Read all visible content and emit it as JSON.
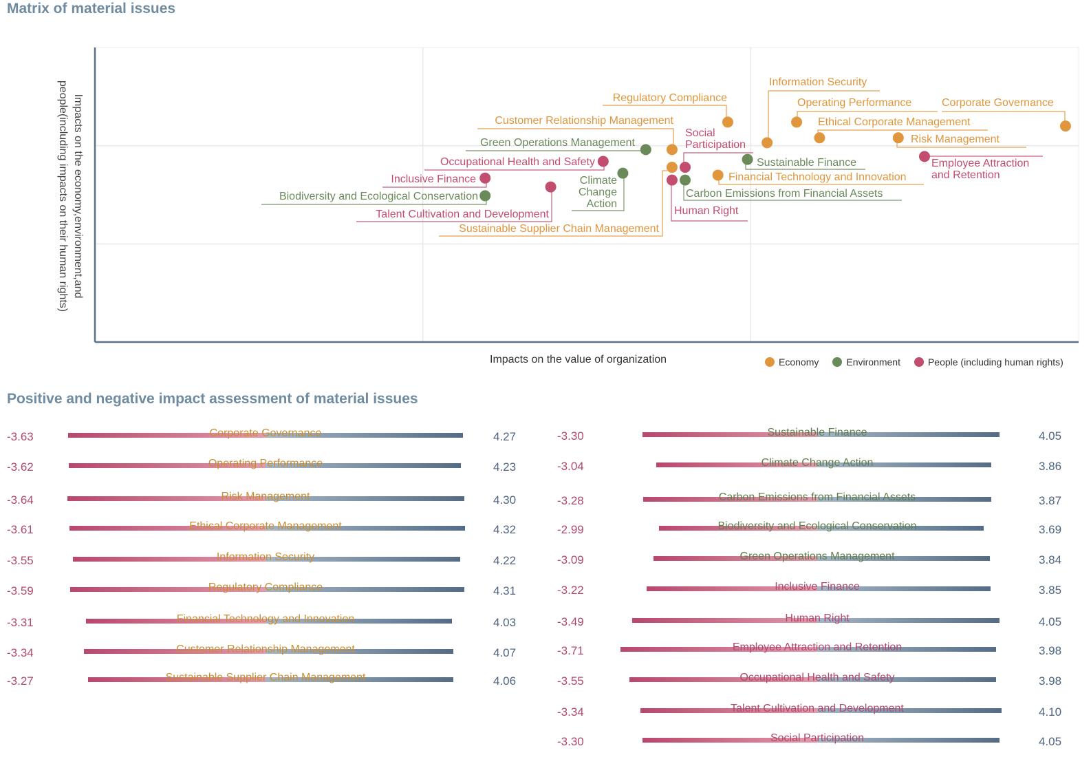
{
  "matrix": {
    "title": "Matrix of material issues",
    "xlabel": "Impacts on the value of organization",
    "ylabel": "Impacts on the economy,environment,and people(including impacts on their human rights)",
    "legend": [
      {
        "key": "economy",
        "label": "Economy",
        "color": "#e0963c"
      },
      {
        "key": "environment",
        "label": "Environment",
        "color": "#6a8a5a"
      },
      {
        "key": "people",
        "label": "People (including human rights)",
        "color": "#c24d6e"
      }
    ]
  },
  "bars_section": {
    "title": "Positive and negative impact assessment of material issues",
    "colors": {
      "negative": "#b8486c",
      "positive": "#556c86",
      "economy_label": "#c98d33",
      "environment_label": "#5f7f4d",
      "people_label": "#b0496e"
    }
  },
  "chart_data": [
    {
      "type": "scatter",
      "title": "Matrix of material issues",
      "xlabel": "Impacts on the value of organization",
      "ylabel": "Impacts on the economy,environment,and people(including impacts on their human rights)",
      "xlim": [
        0,
        3
      ],
      "ylim": [
        0,
        3
      ],
      "grid": true,
      "legend_position": "bottom-right",
      "series": [
        {
          "name": "Economy",
          "color": "#e0963c",
          "points": [
            {
              "label": "Regulatory Compliance",
              "x": 1.93,
              "y": 2.24
            },
            {
              "label": "Information Security",
              "x": 2.05,
              "y": 2.03
            },
            {
              "label": "Operating Performance",
              "x": 2.14,
              "y": 2.24
            },
            {
              "label": "Corporate Governance",
              "x": 2.96,
              "y": 2.2
            },
            {
              "label": "Ethical Corporate Management",
              "x": 2.21,
              "y": 2.08
            },
            {
              "label": "Risk Management",
              "x": 2.45,
              "y": 2.08
            },
            {
              "label": "Financial Technology and Innovation",
              "x": 1.9,
              "y": 1.7
            },
            {
              "label": "Customer Relationship Management",
              "x": 1.76,
              "y": 1.96
            },
            {
              "label": "Sustainable Supplier Chain Management",
              "x": 1.76,
              "y": 1.78
            }
          ]
        },
        {
          "name": "Environment",
          "color": "#6a8a5a",
          "points": [
            {
              "label": "Sustainable Finance",
              "x": 1.99,
              "y": 1.86
            },
            {
              "label": "Carbon Emissions from Financial Assets",
              "x": 1.8,
              "y": 1.65
            },
            {
              "label": "Green Operations Management",
              "x": 1.68,
              "y": 1.96
            },
            {
              "label": "Climate Change Action",
              "x": 1.61,
              "y": 1.72
            },
            {
              "label": "Biodiversity and Ecological Conservation",
              "x": 1.19,
              "y": 1.49
            }
          ]
        },
        {
          "name": "People (including human rights)",
          "color": "#c24d6e",
          "points": [
            {
              "label": "Employee Attraction and Retention",
              "x": 2.53,
              "y": 1.89
            },
            {
              "label": "Social Participation",
              "x": 1.8,
              "y": 1.78
            },
            {
              "label": "Human Right",
              "x": 1.76,
              "y": 1.65
            },
            {
              "label": "Occupational Health and Safety",
              "x": 1.55,
              "y": 1.84
            },
            {
              "label": "Inclusive Finance",
              "x": 1.19,
              "y": 1.67
            },
            {
              "label": "Talent Cultivation and Development",
              "x": 1.39,
              "y": 1.58
            }
          ]
        }
      ]
    },
    {
      "type": "bar",
      "title": "Positive and negative impact assessment of material issues",
      "orientation": "horizontal-diverging",
      "groups": [
        {
          "name": "left",
          "items": [
            {
              "label": "Corporate Governance",
              "category": "economy",
              "negative": -3.63,
              "positive": 4.27
            },
            {
              "label": "Operating Performance",
              "category": "economy",
              "negative": -3.62,
              "positive": 4.23
            },
            {
              "label": "Risk Management",
              "category": "economy",
              "negative": -3.64,
              "positive": 4.3
            },
            {
              "label": "Ethical Corporate Management",
              "category": "economy",
              "negative": -3.61,
              "positive": 4.32
            },
            {
              "label": "Information Security",
              "category": "economy",
              "negative": -3.55,
              "positive": 4.22
            },
            {
              "label": "Regulatory Compliance",
              "category": "economy",
              "negative": -3.59,
              "positive": 4.31
            },
            {
              "label": "Financial Technology and Innovation",
              "category": "economy",
              "negative": -3.31,
              "positive": 4.03
            },
            {
              "label": "Customer Relationship Management",
              "category": "economy",
              "negative": -3.34,
              "positive": 4.07
            },
            {
              "label": "Sustainable Supplier Chain Management",
              "category": "economy",
              "negative": -3.27,
              "positive": 4.06
            }
          ]
        },
        {
          "name": "right",
          "items": [
            {
              "label": "Sustainable Finance",
              "category": "environment",
              "negative": -3.3,
              "positive": 4.05
            },
            {
              "label": "Climate Change Action",
              "category": "environment",
              "negative": -3.04,
              "positive": 3.86
            },
            {
              "label": "Carbon Emissions from Financial Assets",
              "category": "environment",
              "negative": -3.28,
              "positive": 3.87
            },
            {
              "label": "Biodiversity and Ecological Conservation",
              "category": "environment",
              "negative": -2.99,
              "positive": 3.69
            },
            {
              "label": "Green Operations Management",
              "category": "environment",
              "negative": -3.09,
              "positive": 3.84
            },
            {
              "label": "Inclusive Finance",
              "category": "people",
              "negative": -3.22,
              "positive": 3.85
            },
            {
              "label": "Human Right",
              "category": "people",
              "negative": -3.49,
              "positive": 4.05
            },
            {
              "label": "Employee Attraction and Retention",
              "category": "people",
              "negative": -3.71,
              "positive": 3.98
            },
            {
              "label": "Occupational Health and Safety",
              "category": "people",
              "negative": -3.55,
              "positive": 3.98
            },
            {
              "label": "Talent Cultivation and Development",
              "category": "people",
              "negative": -3.34,
              "positive": 4.1
            },
            {
              "label": "Social Participation",
              "category": "people",
              "negative": -3.3,
              "positive": 4.05
            }
          ]
        }
      ]
    }
  ]
}
